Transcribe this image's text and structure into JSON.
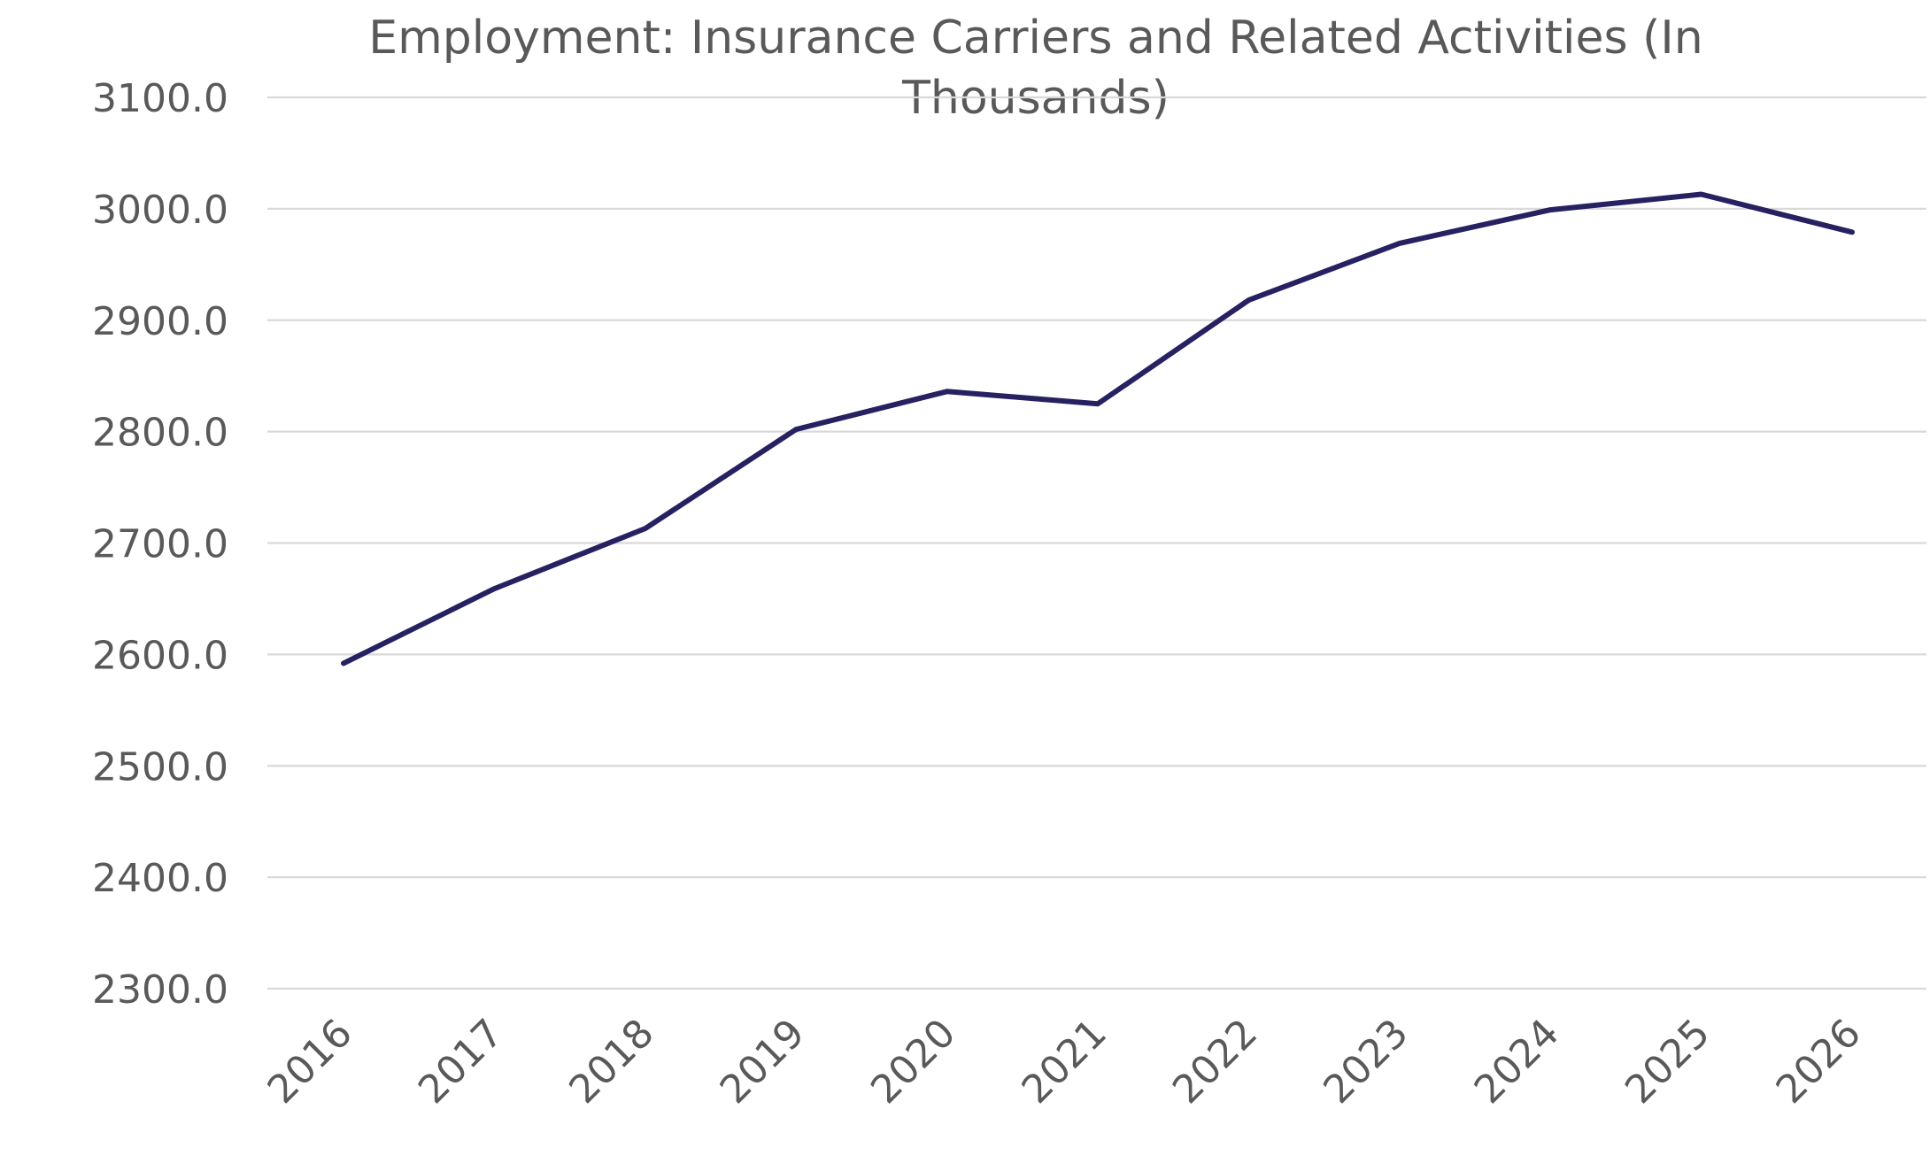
{
  "chart_data": {
    "type": "line",
    "title": "Employment: Insurance Carriers and Related Activities (In Thousands)",
    "title_lines": [
      "Employment: Insurance Carriers and Related Activities (In",
      "Thousands)"
    ],
    "xlabel": "",
    "ylabel": "",
    "categories": [
      "2016",
      "2017",
      "2018",
      "2019",
      "2020",
      "2021",
      "2022",
      "2023",
      "2024",
      "2025",
      "2026"
    ],
    "series": [
      {
        "values": [
          2592.0,
          2659.0,
          2713.0,
          2802.0,
          2836.0,
          2825.0,
          2918.0,
          2969.0,
          2999.0,
          3013.0,
          2979.0
        ],
        "color": "#262262"
      }
    ],
    "ylim": [
      2300.0,
      3100.0
    ],
    "yticks": [
      "2300.0",
      "2400.0",
      "2500.0",
      "2600.0",
      "2700.0",
      "2800.0",
      "2900.0",
      "3000.0",
      "3100.0"
    ],
    "grid": "horizontal",
    "legend": "none",
    "colors": {
      "text": "#595959",
      "gridline": "#d9d9d9",
      "series": "#262262"
    }
  }
}
